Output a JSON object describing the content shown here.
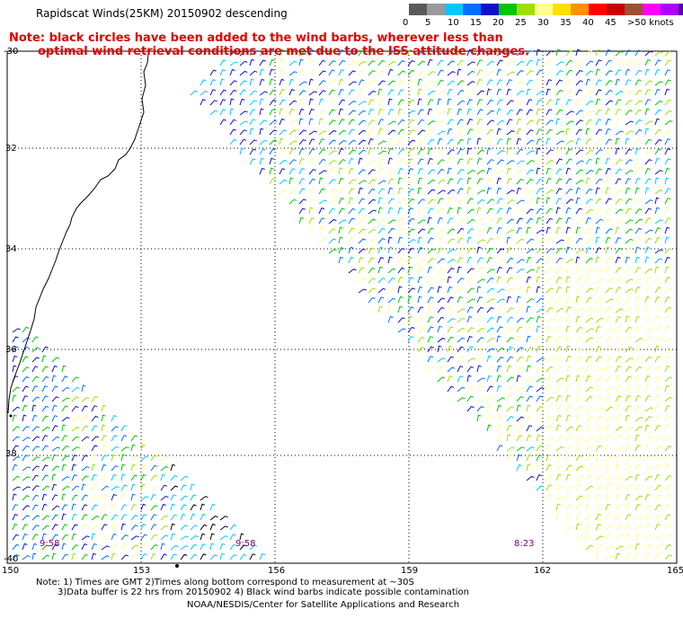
{
  "title": "Rapidscat Winds(25KM) 20150902 descending",
  "note": {
    "line1": "Note: black circles have been added to the wind barbs, wherever less than",
    "line2": "optimal wind retrieval conditions are met due to the ISS attitude changes."
  },
  "colorbar": {
    "colors": [
      "#5a5a5a",
      "#9a9a9a",
      "#00c8ff",
      "#0070ff",
      "#1010c8",
      "#00c800",
      "#a0e000",
      "#ffff90",
      "#ffe000",
      "#ff9000",
      "#ff0000",
      "#c80000",
      "#a05030",
      "#ff00ff",
      "#b000ff",
      "#5000a0"
    ],
    "labels": [
      "0",
      "5",
      "10",
      "15",
      "20",
      "25",
      "30",
      "35",
      "40",
      "45",
      ">50 knots"
    ]
  },
  "axes": {
    "lat_labels": [
      "-30",
      "32",
      "34",
      "36",
      "38",
      "-40"
    ],
    "lon_labels": [
      "150",
      "153",
      "156",
      "159",
      "162",
      "165"
    ]
  },
  "times": [
    "9:58",
    "9:58",
    "8:23"
  ],
  "footer": {
    "line1": "Note: 1) Times are GMT 2)Times along bottom correspond to measurement at ~30S",
    "line2": "3)Data buffer is 22 hrs from 20150902 4) Black wind barbs indicate possible contamination",
    "line3": "NOAA/NESDIS/Center for Satellite Applications and Research"
  }
}
